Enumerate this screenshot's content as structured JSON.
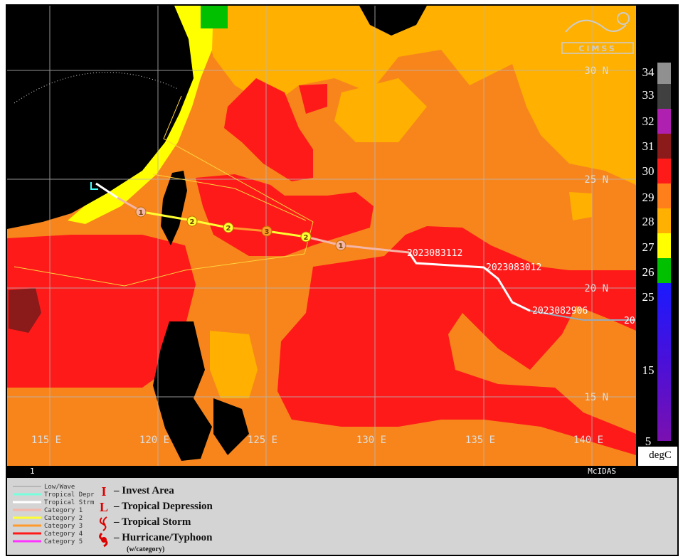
{
  "logo": "CIMSS",
  "latitude_labels": [
    "30 N",
    "25 N",
    "20 N",
    "15 N"
  ],
  "longitude_labels": [
    "115 E",
    "120 E",
    "125 E",
    "130 E",
    "135 E",
    "140 E"
  ],
  "track_labels": [
    "2023083112",
    "2023083012",
    "2023082906",
    "20"
  ],
  "track_markers": [
    "1",
    "2",
    "2",
    "3",
    "2",
    "1"
  ],
  "colorbar": {
    "labels": [
      34,
      33,
      32,
      31,
      30,
      29,
      28,
      27,
      26,
      25,
      15,
      5
    ],
    "unit": "degC"
  },
  "footer": {
    "frame": "1",
    "software": "McIDAS"
  },
  "legend": {
    "lines": [
      "Low/Wave",
      "Tropical Depr",
      "Tropical Strm",
      "Category 1",
      "Category 2",
      "Category 3",
      "Category 4",
      "Category 5"
    ],
    "symbols": [
      {
        "symbol": "I",
        "label": "– Invest Area"
      },
      {
        "symbol": "L",
        "label": "– Tropical Depression"
      },
      {
        "label": "– Tropical Storm"
      },
      {
        "label": "– Hurricane/Typhoon",
        "note": "(w/category)"
      }
    ]
  }
}
